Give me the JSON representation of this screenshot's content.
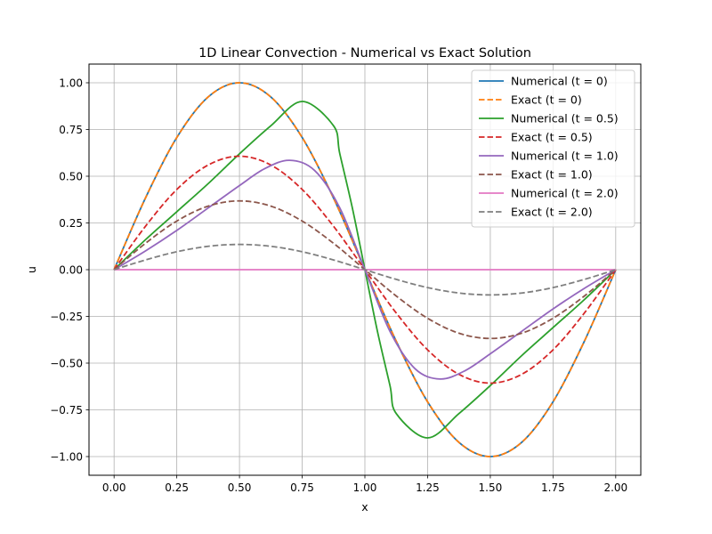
{
  "chart_data": {
    "type": "line",
    "title": "1D Linear Convection - Numerical vs Exact Solution",
    "xlabel": "x",
    "ylabel": "u",
    "xlim": [
      -0.1,
      2.1
    ],
    "ylim": [
      -1.1,
      1.1
    ],
    "xticks": [
      0,
      0.25,
      0.5,
      0.75,
      1.0,
      1.25,
      1.5,
      1.75,
      2.0
    ],
    "xtick_labels": [
      "0.00",
      "0.25",
      "0.50",
      "0.75",
      "1.00",
      "1.25",
      "1.50",
      "1.75",
      "2.00"
    ],
    "yticks": [
      1.0,
      0.75,
      0.5,
      0.25,
      0.0,
      -0.25,
      -0.5,
      -0.75,
      -1.0
    ],
    "ytick_labels": [
      "1.00",
      "0.75",
      "0.50",
      "0.25",
      "0.00",
      "−0.25",
      "−0.50",
      "−0.75",
      "−1.00"
    ],
    "grid": true,
    "legend_position": "top-right",
    "series": [
      {
        "name": "Numerical (t = 0)",
        "color": "#1f77b4",
        "dash": "solid",
        "x": [
          0,
          0.125,
          0.25,
          0.375,
          0.5,
          0.625,
          0.75,
          0.875,
          1.0,
          1.125,
          1.25,
          1.375,
          1.5,
          1.625,
          1.75,
          1.875,
          2.0
        ],
        "y": [
          0,
          0.383,
          0.707,
          0.924,
          1.0,
          0.924,
          0.707,
          0.383,
          0,
          -0.383,
          -0.707,
          -0.924,
          -1.0,
          -0.924,
          -0.707,
          -0.383,
          0
        ]
      },
      {
        "name": "Exact (t = 0)",
        "color": "#ff7f0e",
        "dash": "dashed",
        "x": [
          0,
          0.125,
          0.25,
          0.375,
          0.5,
          0.625,
          0.75,
          0.875,
          1.0,
          1.125,
          1.25,
          1.375,
          1.5,
          1.625,
          1.75,
          1.875,
          2.0
        ],
        "y": [
          0,
          0.383,
          0.707,
          0.924,
          1.0,
          0.924,
          0.707,
          0.383,
          0,
          -0.383,
          -0.707,
          -0.924,
          -1.0,
          -0.924,
          -0.707,
          -0.383,
          0
        ]
      },
      {
        "name": "Numerical (t = 0.5)",
        "color": "#2ca02c",
        "dash": "solid",
        "x": [
          0,
          0.125,
          0.25,
          0.375,
          0.5,
          0.625,
          0.75,
          0.875,
          0.9,
          0.95,
          1.0,
          1.05,
          1.1,
          1.125,
          1.25,
          1.375,
          1.5,
          1.625,
          1.75,
          1.875,
          2.0
        ],
        "y": [
          0,
          0.16,
          0.31,
          0.46,
          0.62,
          0.77,
          0.9,
          0.77,
          0.62,
          0.33,
          0,
          -0.33,
          -0.62,
          -0.77,
          -0.9,
          -0.77,
          -0.62,
          -0.46,
          -0.31,
          -0.16,
          0
        ]
      },
      {
        "name": "Exact (t = 0.5)",
        "color": "#d62728",
        "dash": "dashed",
        "x": [
          0,
          0.125,
          0.25,
          0.375,
          0.5,
          0.625,
          0.75,
          0.875,
          1.0,
          1.125,
          1.25,
          1.375,
          1.5,
          1.625,
          1.75,
          1.875,
          2.0
        ],
        "y": [
          0,
          0.232,
          0.429,
          0.56,
          0.607,
          0.56,
          0.429,
          0.232,
          0,
          -0.232,
          -0.429,
          -0.56,
          -0.607,
          -0.56,
          -0.429,
          -0.232,
          0
        ]
      },
      {
        "name": "Numerical (t = 1.0)",
        "color": "#9467bd",
        "dash": "solid",
        "x": [
          0,
          0.125,
          0.25,
          0.375,
          0.5,
          0.6,
          0.7,
          0.8,
          0.9,
          1.0,
          1.1,
          1.2,
          1.3,
          1.4,
          1.5,
          1.625,
          1.75,
          1.875,
          2.0
        ],
        "y": [
          0,
          0.1,
          0.21,
          0.33,
          0.45,
          0.54,
          0.585,
          0.53,
          0.33,
          0,
          -0.33,
          -0.53,
          -0.585,
          -0.54,
          -0.45,
          -0.33,
          -0.21,
          -0.1,
          0
        ]
      },
      {
        "name": "Exact (t = 1.0)",
        "color": "#8c564b",
        "dash": "dashed",
        "x": [
          0,
          0.125,
          0.25,
          0.375,
          0.5,
          0.625,
          0.75,
          0.875,
          1.0,
          1.125,
          1.25,
          1.375,
          1.5,
          1.625,
          1.75,
          1.875,
          2.0
        ],
        "y": [
          0,
          0.141,
          0.26,
          0.34,
          0.368,
          0.34,
          0.26,
          0.141,
          0,
          -0.141,
          -0.26,
          -0.34,
          -0.368,
          -0.34,
          -0.26,
          -0.141,
          0
        ]
      },
      {
        "name": "Numerical (t = 2.0)",
        "color": "#e377c2",
        "dash": "solid",
        "x": [
          0,
          2.0
        ],
        "y": [
          0,
          0
        ]
      },
      {
        "name": "Exact (t = 2.0)",
        "color": "#7f7f7f",
        "dash": "dashed",
        "x": [
          0,
          0.125,
          0.25,
          0.375,
          0.5,
          0.625,
          0.75,
          0.875,
          1.0,
          1.125,
          1.25,
          1.375,
          1.5,
          1.625,
          1.75,
          1.875,
          2.0
        ],
        "y": [
          0,
          0.052,
          0.096,
          0.125,
          0.135,
          0.125,
          0.096,
          0.052,
          0,
          -0.052,
          -0.096,
          -0.125,
          -0.135,
          -0.125,
          -0.096,
          -0.052,
          0
        ]
      }
    ]
  }
}
